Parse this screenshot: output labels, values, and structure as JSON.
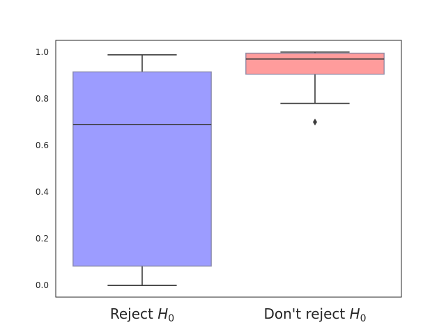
{
  "chart_data": {
    "type": "box",
    "title": "",
    "xlabel": "",
    "ylabel": "",
    "ylim": [
      -0.05,
      1.05
    ],
    "yticks": [
      0.0,
      0.2,
      0.4,
      0.6,
      0.8,
      1.0
    ],
    "ytick_labels": [
      "0.0",
      "0.2",
      "0.4",
      "0.6",
      "0.8",
      "1.0"
    ],
    "grid": false,
    "legend": "none",
    "categories": [
      {
        "label": "Reject ",
        "symbol": "H",
        "subscript": "0",
        "color": "#9c9cff",
        "whisker_low": 0.0,
        "q1": 0.083,
        "median": 0.69,
        "q3": 0.915,
        "whisker_high": 0.988,
        "outliers": []
      },
      {
        "label": "Don't reject ",
        "symbol": "H",
        "subscript": "0",
        "color": "#ff9c9c",
        "whisker_low": 0.78,
        "q1": 0.905,
        "median": 0.97,
        "q3": 0.995,
        "whisker_high": 1.0,
        "outliers": [
          0.7
        ]
      }
    ]
  }
}
